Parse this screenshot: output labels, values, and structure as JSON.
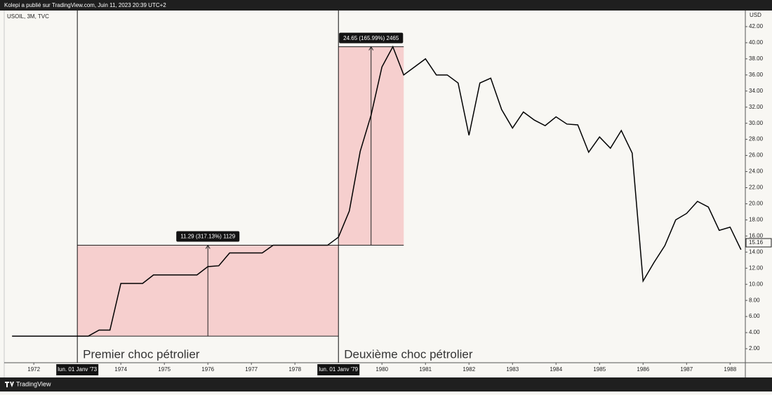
{
  "chart_data": {
    "type": "line",
    "header": "Kolepi a publié sur TradingView.com, Juin 11, 2023 20:39 UTC+2",
    "symbol": "USOIL, 3M, TVC",
    "currency": "USD",
    "brand": "TradingView",
    "color": "#000000",
    "x": [
      1971.5,
      1973.0,
      1973.25,
      1973.5,
      1973.75,
      1974.0,
      1974.5,
      1974.75,
      1975.75,
      1976.0,
      1976.25,
      1976.5,
      1977.25,
      1977.5,
      1978.75,
      1979.0,
      1979.25,
      1979.5,
      1979.75,
      1980.0,
      1980.25,
      1980.5,
      1980.75,
      1981.0,
      1981.25,
      1981.5,
      1981.75,
      1982.0,
      1982.25,
      1982.5,
      1982.75,
      1983.0,
      1983.25,
      1983.5,
      1983.75,
      1984.0,
      1984.25,
      1984.5,
      1984.75,
      1985.0,
      1985.25,
      1985.5,
      1985.75,
      1986.0,
      1986.25,
      1986.5,
      1986.75,
      1987.0,
      1987.25,
      1987.5,
      1987.75,
      1988.0,
      1988.25
    ],
    "values": [
      3.56,
      3.56,
      3.56,
      4.31,
      4.31,
      10.11,
      10.11,
      11.16,
      11.16,
      12.2,
      12.3,
      13.9,
      13.9,
      14.85,
      14.85,
      15.85,
      19.1,
      26.5,
      31.0,
      37.0,
      39.5,
      36.0,
      37.0,
      38.0,
      36.0,
      36.0,
      35.0,
      28.5,
      35.0,
      35.6,
      31.7,
      29.4,
      31.4,
      30.4,
      29.7,
      30.8,
      29.9,
      29.8,
      26.4,
      28.3,
      26.9,
      29.1,
      26.3,
      10.4,
      12.7,
      14.8,
      18.0,
      18.8,
      20.3,
      19.6,
      16.7,
      17.1,
      14.3
    ],
    "last_price": 15.16,
    "xlim": [
      1971.32,
      1988.35
    ],
    "ylim": [
      0.26,
      44.0
    ],
    "xticks": [
      1972,
      {
        "value": 1973,
        "label": "lun. 01 Janv '73"
      },
      1974,
      1975,
      1976,
      1977,
      1978,
      {
        "value": 1979,
        "label": "lun. 01 Janv '79"
      },
      1980,
      1981,
      1982,
      1983,
      1984,
      1985,
      1986,
      1987,
      1988
    ],
    "yticks": [
      {
        "value": 2,
        "label": "2.00"
      },
      {
        "value": 4,
        "label": "4.00"
      },
      {
        "value": 6,
        "label": "6.00"
      },
      {
        "value": 8,
        "label": "8.00"
      },
      {
        "value": 10,
        "label": "10.00"
      },
      {
        "value": 12,
        "label": "12.00"
      },
      {
        "value": 14,
        "label": "14.00"
      },
      {
        "value": 16,
        "label": "16.00"
      },
      {
        "value": 18,
        "label": "18.00"
      },
      {
        "value": 20,
        "label": "20.00"
      },
      {
        "value": 22,
        "label": "22.00"
      },
      {
        "value": 24,
        "label": "24.00"
      },
      {
        "value": 26,
        "label": "26.00"
      },
      {
        "value": 28,
        "label": "28.00"
      },
      {
        "value": 30,
        "label": "30.00"
      },
      {
        "value": 32,
        "label": "32.00"
      },
      {
        "value": 34,
        "label": "34.00"
      },
      {
        "value": 36,
        "label": "36.00"
      },
      {
        "value": 38,
        "label": "38.00"
      },
      {
        "value": 40,
        "label": "40.00"
      },
      {
        "value": 42,
        "label": "42.00"
      }
    ],
    "annotations": [
      {
        "x": [
          1973,
          1979
        ],
        "y": [
          3.56,
          14.85
        ],
        "label": "11.29 (317.13%) 1129",
        "text": "Premier choc pétrolier"
      },
      {
        "x": [
          1979,
          1980.5
        ],
        "y": [
          14.85,
          39.5
        ],
        "label": "24.65 (165.99%) 2465",
        "text": "Deuxième choc pétrolier"
      }
    ]
  }
}
